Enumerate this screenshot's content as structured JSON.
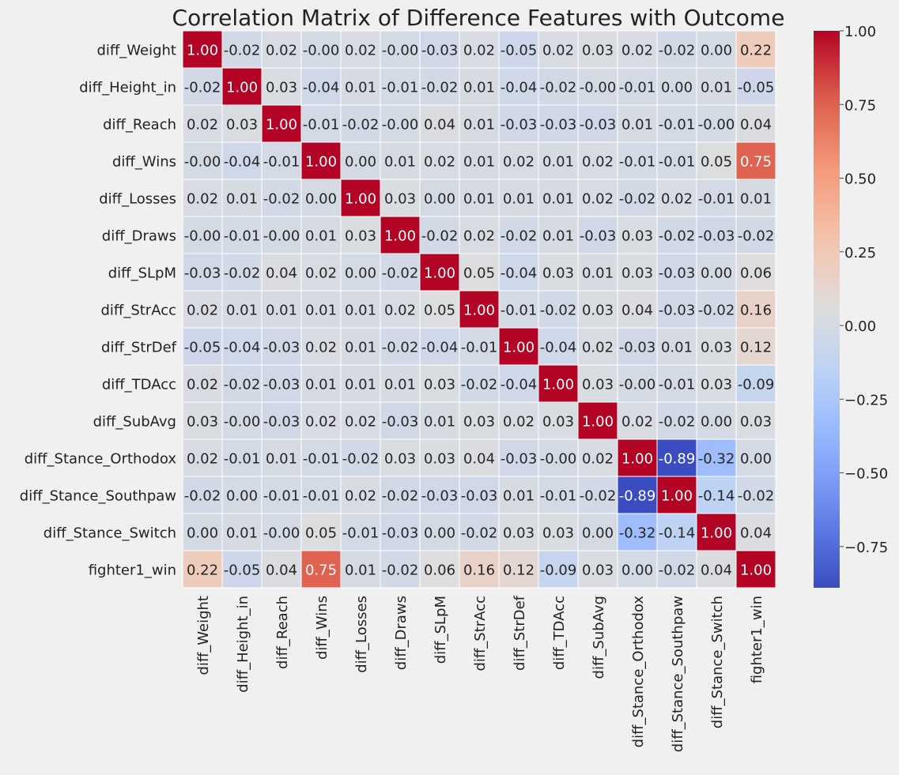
{
  "chart_data": {
    "type": "heatmap",
    "title": "Correlation Matrix of Difference Features with Outcome",
    "xlabel": "",
    "ylabel": "",
    "colormap": "coolwarm",
    "vmin": -0.89,
    "vmax": 1.0,
    "grid": false,
    "labels": [
      "diff_Weight",
      "diff_Height_in",
      "diff_Reach",
      "diff_Wins",
      "diff_Losses",
      "diff_Draws",
      "diff_SLpM",
      "diff_StrAcc",
      "diff_StrDef",
      "diff_TDAcc",
      "diff_SubAvg",
      "diff_Stance_Orthodox",
      "diff_Stance_Southpaw",
      "diff_Stance_Switch",
      "fighter1_win"
    ],
    "values": [
      [
        1.0,
        -0.02,
        0.02,
        -0.0,
        0.02,
        -0.0,
        -0.03,
        0.02,
        -0.05,
        0.02,
        0.03,
        0.02,
        -0.02,
        0.0,
        0.22
      ],
      [
        -0.02,
        1.0,
        0.03,
        -0.04,
        0.01,
        -0.01,
        -0.02,
        0.01,
        -0.04,
        -0.02,
        -0.0,
        -0.01,
        0.0,
        0.01,
        -0.05
      ],
      [
        0.02,
        0.03,
        1.0,
        -0.01,
        -0.02,
        -0.0,
        0.04,
        0.01,
        -0.03,
        -0.03,
        -0.03,
        0.01,
        -0.01,
        -0.0,
        0.04
      ],
      [
        -0.0,
        -0.04,
        -0.01,
        1.0,
        0.0,
        0.01,
        0.02,
        0.01,
        0.02,
        0.01,
        0.02,
        -0.01,
        -0.01,
        0.05,
        0.75
      ],
      [
        0.02,
        0.01,
        -0.02,
        0.0,
        1.0,
        0.03,
        0.0,
        0.01,
        0.01,
        0.01,
        0.02,
        -0.02,
        0.02,
        -0.01,
        0.01
      ],
      [
        -0.0,
        -0.01,
        -0.0,
        0.01,
        0.03,
        1.0,
        -0.02,
        0.02,
        -0.02,
        0.01,
        -0.03,
        0.03,
        -0.02,
        -0.03,
        -0.02
      ],
      [
        -0.03,
        -0.02,
        0.04,
        0.02,
        0.0,
        -0.02,
        1.0,
        0.05,
        -0.04,
        0.03,
        0.01,
        0.03,
        -0.03,
        0.0,
        0.06
      ],
      [
        0.02,
        0.01,
        0.01,
        0.01,
        0.01,
        0.02,
        0.05,
        1.0,
        -0.01,
        -0.02,
        0.03,
        0.04,
        -0.03,
        -0.02,
        0.16
      ],
      [
        -0.05,
        -0.04,
        -0.03,
        0.02,
        0.01,
        -0.02,
        -0.04,
        -0.01,
        1.0,
        -0.04,
        0.02,
        -0.03,
        0.01,
        0.03,
        0.12
      ],
      [
        0.02,
        -0.02,
        -0.03,
        0.01,
        0.01,
        0.01,
        0.03,
        -0.02,
        -0.04,
        1.0,
        0.03,
        -0.0,
        -0.01,
        0.03,
        -0.09
      ],
      [
        0.03,
        -0.0,
        -0.03,
        0.02,
        0.02,
        -0.03,
        0.01,
        0.03,
        0.02,
        0.03,
        1.0,
        0.02,
        -0.02,
        0.0,
        0.03
      ],
      [
        0.02,
        -0.01,
        0.01,
        -0.01,
        -0.02,
        0.03,
        0.03,
        0.04,
        -0.03,
        -0.0,
        0.02,
        1.0,
        -0.89,
        -0.32,
        0.0
      ],
      [
        -0.02,
        0.0,
        -0.01,
        -0.01,
        0.02,
        -0.02,
        -0.03,
        -0.03,
        0.01,
        -0.01,
        -0.02,
        -0.89,
        1.0,
        -0.14,
        -0.02
      ],
      [
        0.0,
        0.01,
        -0.0,
        0.05,
        -0.01,
        -0.03,
        0.0,
        -0.02,
        0.03,
        0.03,
        0.0,
        -0.32,
        -0.14,
        1.0,
        0.04
      ],
      [
        0.22,
        -0.05,
        0.04,
        0.75,
        0.01,
        -0.02,
        0.06,
        0.16,
        0.12,
        -0.09,
        0.03,
        0.0,
        -0.02,
        0.04,
        1.0
      ]
    ],
    "cell_labels": [
      [
        "1.00",
        "-0.02",
        "0.02",
        "-0.00",
        "0.02",
        "-0.00",
        "-0.03",
        "0.02",
        "-0.05",
        "0.02",
        "0.03",
        "0.02",
        "-0.02",
        "0.00",
        "0.22"
      ],
      [
        "-0.02",
        "1.00",
        "0.03",
        "-0.04",
        "0.01",
        "-0.01",
        "-0.02",
        "0.01",
        "-0.04",
        "-0.02",
        "-0.00",
        "-0.01",
        "0.00",
        "0.01",
        "-0.05"
      ],
      [
        "0.02",
        "0.03",
        "1.00",
        "-0.01",
        "-0.02",
        "-0.00",
        "0.04",
        "0.01",
        "-0.03",
        "-0.03",
        "-0.03",
        "0.01",
        "-0.01",
        "-0.00",
        "0.04"
      ],
      [
        "-0.00",
        "-0.04",
        "-0.01",
        "1.00",
        "0.00",
        "0.01",
        "0.02",
        "0.01",
        "0.02",
        "0.01",
        "0.02",
        "-0.01",
        "-0.01",
        "0.05",
        "0.75"
      ],
      [
        "0.02",
        "0.01",
        "-0.02",
        "0.00",
        "1.00",
        "0.03",
        "0.00",
        "0.01",
        "0.01",
        "0.01",
        "0.02",
        "-0.02",
        "0.02",
        "-0.01",
        "0.01"
      ],
      [
        "-0.00",
        "-0.01",
        "-0.00",
        "0.01",
        "0.03",
        "1.00",
        "-0.02",
        "0.02",
        "-0.02",
        "0.01",
        "-0.03",
        "0.03",
        "-0.02",
        "-0.03",
        "-0.02"
      ],
      [
        "-0.03",
        "-0.02",
        "0.04",
        "0.02",
        "0.00",
        "-0.02",
        "1.00",
        "0.05",
        "-0.04",
        "0.03",
        "0.01",
        "0.03",
        "-0.03",
        "0.00",
        "0.06"
      ],
      [
        "0.02",
        "0.01",
        "0.01",
        "0.01",
        "0.01",
        "0.02",
        "0.05",
        "1.00",
        "-0.01",
        "-0.02",
        "0.03",
        "0.04",
        "-0.03",
        "-0.02",
        "0.16"
      ],
      [
        "-0.05",
        "-0.04",
        "-0.03",
        "0.02",
        "0.01",
        "-0.02",
        "-0.04",
        "-0.01",
        "1.00",
        "-0.04",
        "0.02",
        "-0.03",
        "0.01",
        "0.03",
        "0.12"
      ],
      [
        "0.02",
        "-0.02",
        "-0.03",
        "0.01",
        "0.01",
        "0.01",
        "0.03",
        "-0.02",
        "-0.04",
        "1.00",
        "0.03",
        "-0.00",
        "-0.01",
        "0.03",
        "-0.09"
      ],
      [
        "0.03",
        "-0.00",
        "-0.03",
        "0.02",
        "0.02",
        "-0.03",
        "0.01",
        "0.03",
        "0.02",
        "0.03",
        "1.00",
        "0.02",
        "-0.02",
        "0.00",
        "0.03"
      ],
      [
        "0.02",
        "-0.01",
        "0.01",
        "-0.01",
        "-0.02",
        "0.03",
        "0.03",
        "0.04",
        "-0.03",
        "-0.00",
        "0.02",
        "1.00",
        "-0.89",
        "-0.32",
        "0.00"
      ],
      [
        "-0.02",
        "0.00",
        "-0.01",
        "-0.01",
        "0.02",
        "-0.02",
        "-0.03",
        "-0.03",
        "0.01",
        "-0.01",
        "-0.02",
        "-0.89",
        "1.00",
        "-0.14",
        "-0.02"
      ],
      [
        "0.00",
        "0.01",
        "-0.00",
        "0.05",
        "-0.01",
        "-0.03",
        "0.00",
        "-0.02",
        "0.03",
        "0.03",
        "0.00",
        "-0.32",
        "-0.14",
        "1.00",
        "0.04"
      ],
      [
        "0.22",
        "-0.05",
        "0.04",
        "0.75",
        "0.01",
        "-0.02",
        "0.06",
        "0.16",
        "0.12",
        "-0.09",
        "0.03",
        "0.00",
        "-0.02",
        "0.04",
        "1.00"
      ]
    ],
    "colorbar": {
      "ticks": [
        1.0,
        0.75,
        0.5,
        0.25,
        0.0,
        -0.25,
        -0.5,
        -0.75
      ],
      "tick_labels": [
        "1.00",
        "0.75",
        "0.50",
        "0.25",
        "0.00",
        "−0.25",
        "−0.50",
        "−0.75"
      ]
    }
  }
}
